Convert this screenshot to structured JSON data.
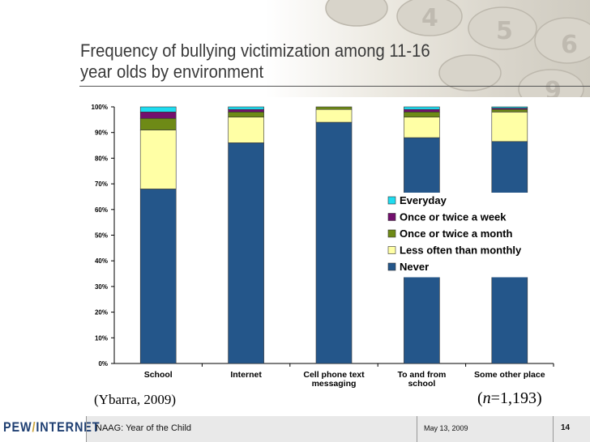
{
  "slide": {
    "title_line1": "Frequency of bullying victimization among 11-16",
    "title_line2": "year olds by environment",
    "source": "(Ybarra, 2009)",
    "n_var": "n",
    "n_value": "=1,193)",
    "n_open": "("
  },
  "footer": {
    "logo_left": "PEW",
    "logo_slash": "/",
    "logo_right": "INTERNET",
    "title": "NAAG: Year of the Child",
    "date": "May 13, 2009",
    "page": "14"
  },
  "colors": {
    "never": "#24568a",
    "less_often": "#ffffa5",
    "once_month": "#6e8a16",
    "once_week": "#730f6e",
    "everyday": "#1edcf0",
    "gridline": "#cccccc"
  },
  "chart_data": {
    "type": "bar",
    "stacked": true,
    "title": "Frequency of bullying victimization among 11-16 year olds by environment",
    "xlabel": "",
    "ylabel": "",
    "ylim": [
      0,
      100
    ],
    "yticks": [
      "0%",
      "10%",
      "20%",
      "30%",
      "40%",
      "50%",
      "60%",
      "70%",
      "80%",
      "90%",
      "100%"
    ],
    "categories": [
      [
        "School"
      ],
      [
        "Internet"
      ],
      [
        "Cell phone text",
        "messaging"
      ],
      [
        "To and from",
        "school"
      ],
      [
        "Some other place"
      ]
    ],
    "series": [
      {
        "name": "Never",
        "color": "#24568a",
        "values": [
          68,
          86,
          94,
          88,
          86.5
        ]
      },
      {
        "name": "Less often than monthly",
        "color": "#ffffa5",
        "values": [
          23,
          10,
          5,
          8,
          11.5
        ]
      },
      {
        "name": "Once or twice a month",
        "color": "#6e8a16",
        "values": [
          4.5,
          2,
          1,
          2,
          1
        ]
      },
      {
        "name": "Once or twice a week",
        "color": "#730f6e",
        "values": [
          2.5,
          1,
          0,
          1,
          0.5
        ]
      },
      {
        "name": "Everyday",
        "color": "#1edcf0",
        "values": [
          2,
          1,
          0,
          1,
          0.5
        ]
      }
    ],
    "legend": [
      "Everyday",
      "Once or twice a week",
      "Once or twice a month",
      "Less often than monthly",
      "Never"
    ],
    "legend_position": "right-center",
    "grid": true
  }
}
